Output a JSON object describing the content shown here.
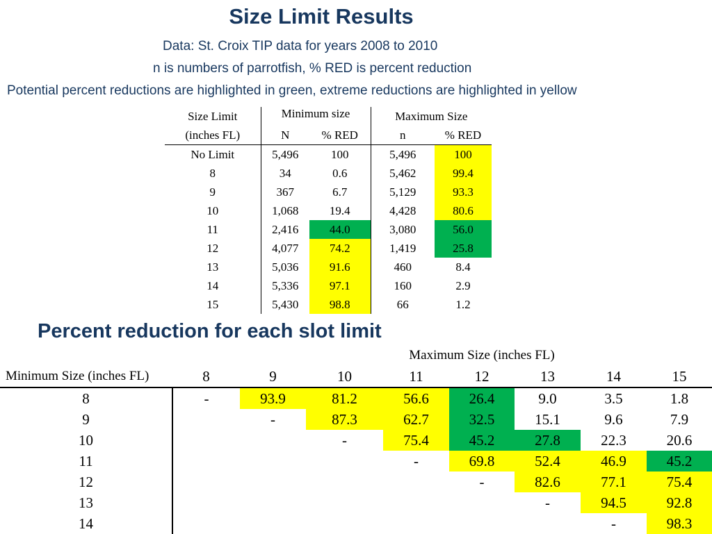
{
  "title": "Size Limit Results",
  "subtitle1": "Data: St. Croix TIP data for years 2008 to 2010",
  "subtitle2": "n is numbers of parrotfish, % RED is percent reduction",
  "subtitle3": "Potential percent reductions are highlighted in green, extreme reductions are highlighted in yellow",
  "highlight_colors": {
    "green": "#00b050",
    "yellow": "#ffff00"
  },
  "size_table": {
    "header1": {
      "col1": "Size Limit",
      "min": "Minimum size",
      "max": "Maximum Size"
    },
    "header2": {
      "col1": "(inches FL)",
      "min_n": "N",
      "min_red": "% RED",
      "max_n": "n",
      "max_red": "% RED"
    },
    "rows": [
      {
        "limit": "No Limit",
        "min_n": "5,496",
        "min_red": "100",
        "max_n": "5,496",
        "max_red": "100"
      },
      {
        "limit": "8",
        "min_n": "34",
        "min_red": "0.6",
        "max_n": "5,462",
        "max_red": "99.4"
      },
      {
        "limit": "9",
        "min_n": "367",
        "min_red": "6.7",
        "max_n": "5,129",
        "max_red": "93.3"
      },
      {
        "limit": "10",
        "min_n": "1,068",
        "min_red": "19.4",
        "max_n": "4,428",
        "max_red": "80.6"
      },
      {
        "limit": "11",
        "min_n": "2,416",
        "min_red": "44.0",
        "max_n": "3,080",
        "max_red": "56.0"
      },
      {
        "limit": "12",
        "min_n": "4,077",
        "min_red": "74.2",
        "max_n": "1,419",
        "max_red": "25.8"
      },
      {
        "limit": "13",
        "min_n": "5,036",
        "min_red": "91.6",
        "max_n": "460",
        "max_red": "8.4"
      },
      {
        "limit": "14",
        "min_n": "5,336",
        "min_red": "97.1",
        "max_n": "160",
        "max_red": "2.9"
      },
      {
        "limit": "15",
        "min_n": "5,430",
        "min_red": "98.8",
        "max_n": "66",
        "max_red": "1.2"
      }
    ]
  },
  "section_title": "Percent reduction for each slot limit",
  "slot_table": {
    "max_header": "Maximum Size (inches FL)",
    "min_header": "Minimum Size (inches FL)",
    "columns": [
      "8",
      "9",
      "10",
      "11",
      "12",
      "13",
      "14",
      "15"
    ],
    "rows": [
      {
        "min": "8",
        "values": [
          "-",
          "93.9",
          "81.2",
          "56.6",
          "26.4",
          "9.0",
          "3.5",
          "1.8"
        ]
      },
      {
        "min": "9",
        "values": [
          "",
          "-",
          "87.3",
          "62.7",
          "32.5",
          "15.1",
          "9.6",
          "7.9"
        ]
      },
      {
        "min": "10",
        "values": [
          "",
          "",
          "-",
          "75.4",
          "45.2",
          "27.8",
          "22.3",
          "20.6"
        ]
      },
      {
        "min": "11",
        "values": [
          "",
          "",
          "",
          "-",
          "69.8",
          "52.4",
          "46.9",
          "45.2"
        ]
      },
      {
        "min": "12",
        "values": [
          "",
          "",
          "",
          "",
          "-",
          "82.6",
          "77.1",
          "75.4"
        ]
      },
      {
        "min": "13",
        "values": [
          "",
          "",
          "",
          "",
          "",
          "-",
          "94.5",
          "92.8"
        ]
      },
      {
        "min": "14",
        "values": [
          "",
          "",
          "",
          "",
          "",
          "",
          "-",
          "98.3"
        ]
      }
    ]
  }
}
